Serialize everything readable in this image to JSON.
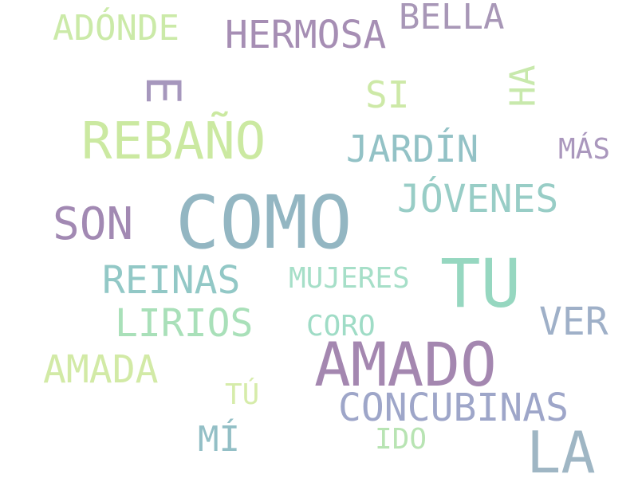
{
  "words": [
    {
      "key": "como",
      "text": "COMO",
      "color": "#93b6c2"
    },
    {
      "key": "tu",
      "text": "TU",
      "color": "#96d7c0"
    },
    {
      "key": "amado",
      "text": "AMADO",
      "color": "#a487b0"
    },
    {
      "key": "la",
      "text": "LA",
      "color": "#9fb6c4"
    },
    {
      "key": "rebano",
      "text": "REBAÑO",
      "color": "#cbe9a1"
    },
    {
      "key": "son",
      "text": "SON",
      "color": "#a289b3"
    },
    {
      "key": "hermosa",
      "text": "HERMOSA",
      "color": "#a68eb4"
    },
    {
      "key": "bella",
      "text": "BELLA",
      "color": "#a897b7"
    },
    {
      "key": "adonde",
      "text": "ADÓNDE",
      "color": "#cbeaa8"
    },
    {
      "key": "jardin",
      "text": "JARDÍN",
      "color": "#93c2c6"
    },
    {
      "key": "jovenes",
      "text": "JÓVENES",
      "color": "#98cdc6"
    },
    {
      "key": "reinas",
      "text": "REINAS",
      "color": "#92c8c6"
    },
    {
      "key": "lirios",
      "text": "LIRIOS",
      "color": "#a9e0b9"
    },
    {
      "key": "amada",
      "text": "AMADA",
      "color": "#d2eaa6"
    },
    {
      "key": "concubinas",
      "text": "CONCUBINAS",
      "color": "#9ea6c9"
    },
    {
      "key": "ver",
      "text": "VER",
      "color": "#9fb0c8"
    },
    {
      "key": "si",
      "text": "SI",
      "color": "#cde9a7"
    },
    {
      "key": "mi",
      "text": "MÍ",
      "color": "#93bfc6"
    },
    {
      "key": "mujeres",
      "text": "MUJERES",
      "color": "#a6dfc8"
    },
    {
      "key": "coro",
      "text": "CORO",
      "color": "#9fdcc6"
    },
    {
      "key": "mas",
      "text": "MÁS",
      "color": "#aa97bd"
    },
    {
      "key": "tu_small",
      "text": "TÚ",
      "color": "#d6ecaa"
    },
    {
      "key": "ido",
      "text": "IDO",
      "color": "#b8e4b3"
    },
    {
      "key": "e",
      "text": "E",
      "color": "#a697bd"
    },
    {
      "key": "ha",
      "text": "HA",
      "color": "#c8e9ac"
    }
  ]
}
